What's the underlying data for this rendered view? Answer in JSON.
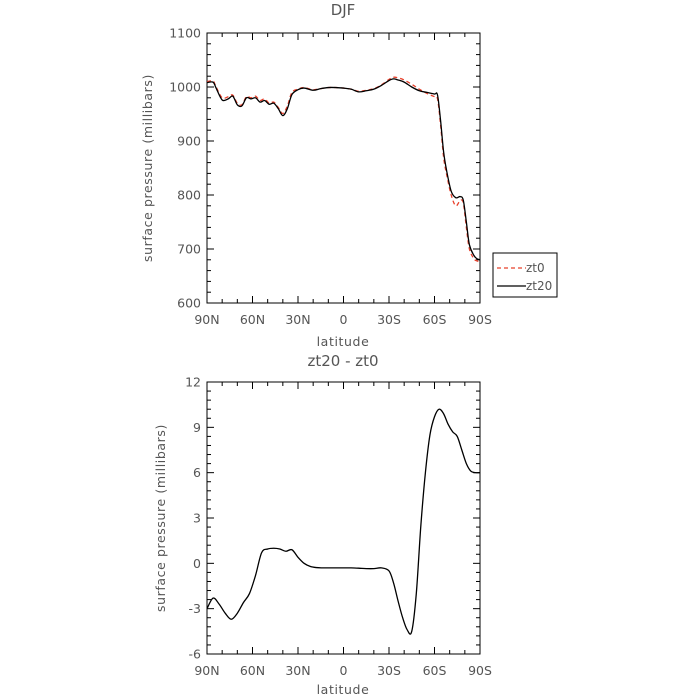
{
  "chart_data": [
    {
      "type": "line",
      "title": "DJF",
      "xlabel": "latitude",
      "ylabel": "surface pressure (millibars)",
      "xlim": [
        90,
        -90
      ],
      "ylim": [
        600,
        1100
      ],
      "x_ticks": [
        90,
        60,
        30,
        0,
        -30,
        -60,
        -90
      ],
      "x_tick_labels": [
        "90N",
        "60N",
        "30N",
        "0",
        "30S",
        "60S",
        "90S"
      ],
      "y_ticks": [
        600,
        700,
        800,
        900,
        1000,
        1100
      ],
      "y_tick_labels": [
        "600",
        "700",
        "800",
        "900",
        "1000",
        "1100"
      ],
      "legend_position": "right",
      "series": [
        {
          "name": "zt0",
          "color": "#e8402b",
          "dash": "dashed",
          "x": [
            90,
            86,
            84,
            80,
            76,
            73,
            70,
            67,
            64,
            61,
            58,
            55,
            52,
            49,
            46,
            43,
            40,
            37,
            34,
            30,
            26,
            20,
            15,
            10,
            5,
            0,
            -5,
            -10,
            -15,
            -20,
            -25,
            -30,
            -33,
            -36,
            -40,
            -45,
            -50,
            -55,
            -60,
            -62,
            -64,
            -66,
            -68,
            -71,
            -74,
            -77,
            -79,
            -81,
            -83,
            -86,
            -88,
            -90
          ],
          "y": [
            1010,
            1011,
            1000,
            980,
            982,
            985,
            970,
            967,
            982,
            980,
            983,
            975,
            978,
            970,
            972,
            962,
            951,
            965,
            990,
            996,
            999,
            995,
            997,
            999,
            999,
            998,
            996,
            992,
            994,
            997,
            1004,
            1014,
            1018,
            1017,
            1013,
            1005,
            996,
            988,
            982,
            978,
            930,
            870,
            838,
            800,
            780,
            790,
            785,
            740,
            700,
            682,
            678,
            676
          ]
        },
        {
          "name": "zt20",
          "color": "#000000",
          "dash": "solid",
          "x": [
            90,
            86,
            84,
            80,
            76,
            73,
            70,
            67,
            64,
            61,
            58,
            55,
            52,
            49,
            46,
            43,
            40,
            37,
            34,
            30,
            26,
            20,
            15,
            10,
            5,
            0,
            -5,
            -10,
            -15,
            -20,
            -25,
            -30,
            -33,
            -36,
            -40,
            -45,
            -50,
            -55,
            -60,
            -62,
            -64,
            -66,
            -68,
            -71,
            -74,
            -77,
            -79,
            -81,
            -83,
            -86,
            -88,
            -90
          ],
          "y": [
            1008,
            1009,
            998,
            976,
            978,
            983,
            967,
            965,
            980,
            978,
            980,
            972,
            975,
            968,
            970,
            960,
            947,
            960,
            986,
            995,
            998,
            994,
            997,
            999,
            999,
            998,
            996,
            991,
            993,
            996,
            1003,
            1012,
            1015,
            1013,
            1009,
            1000,
            993,
            990,
            987,
            985,
            938,
            880,
            845,
            807,
            795,
            797,
            790,
            750,
            708,
            688,
            682,
            680
          ]
        }
      ]
    },
    {
      "type": "line",
      "title": "zt20 - zt0",
      "xlabel": "latitude",
      "ylabel": "surface pressure (millibars)",
      "xlim": [
        90,
        -90
      ],
      "ylim": [
        -6,
        12
      ],
      "x_ticks": [
        90,
        60,
        30,
        0,
        -30,
        -60,
        -90
      ],
      "x_tick_labels": [
        "90N",
        "60N",
        "30N",
        "0",
        "30S",
        "60S",
        "90S"
      ],
      "y_ticks": [
        -6,
        -3,
        0,
        3,
        6,
        9,
        12
      ],
      "y_tick_labels": [
        "-6",
        "-3",
        "0",
        "3",
        "6",
        "9",
        "12"
      ],
      "series": [
        {
          "color": "#000000",
          "dash": "solid",
          "x": [
            90,
            86,
            82,
            78,
            74,
            70,
            66,
            62,
            58,
            54,
            50,
            46,
            42,
            38,
            34,
            30,
            26,
            22,
            18,
            14,
            10,
            5,
            0,
            -5,
            -10,
            -15,
            -20,
            -25,
            -30,
            -33,
            -36,
            -39,
            -42,
            -45,
            -48,
            -51,
            -54,
            -57,
            -60,
            -63,
            -66,
            -69,
            -72,
            -75,
            -78,
            -81,
            -84,
            -87,
            -90
          ],
          "y": [
            -3.0,
            -2.3,
            -2.7,
            -3.3,
            -3.7,
            -3.3,
            -2.6,
            -2.0,
            -0.8,
            0.7,
            0.95,
            1.0,
            0.95,
            0.8,
            0.9,
            0.4,
            0.0,
            -0.2,
            -0.28,
            -0.3,
            -0.3,
            -0.3,
            -0.3,
            -0.3,
            -0.32,
            -0.35,
            -0.35,
            -0.3,
            -0.5,
            -1.3,
            -2.5,
            -3.6,
            -4.4,
            -4.5,
            -2.0,
            2.5,
            6.0,
            8.5,
            9.7,
            10.2,
            9.9,
            9.2,
            8.7,
            8.4,
            7.5,
            6.6,
            6.1,
            6.0,
            6.0
          ]
        }
      ]
    }
  ]
}
